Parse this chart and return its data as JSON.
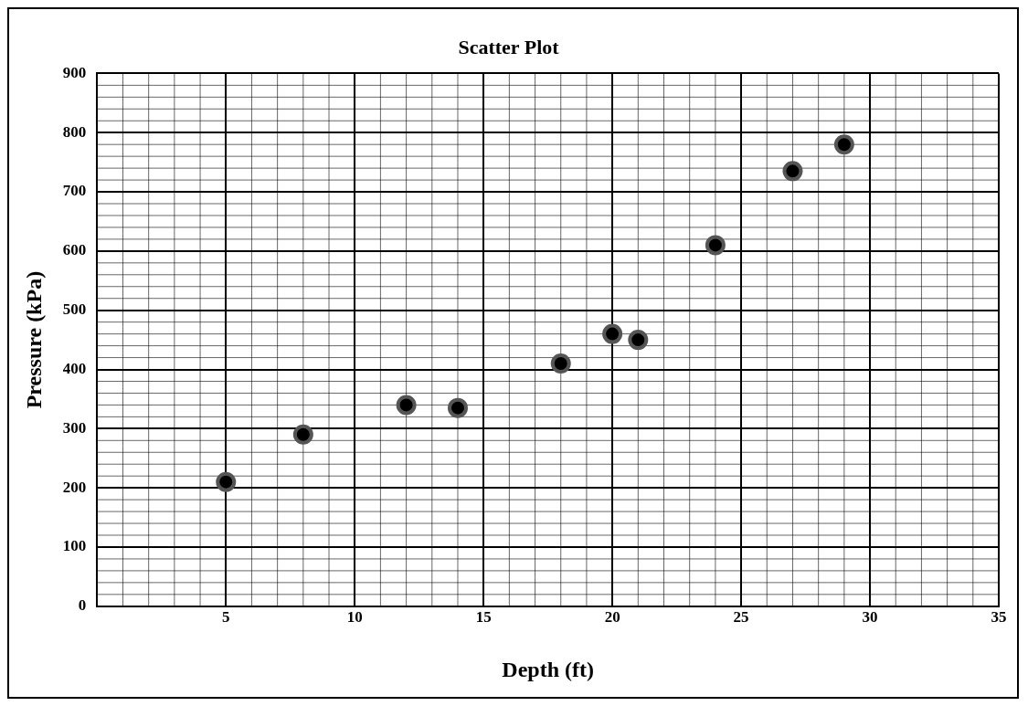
{
  "chart_data": {
    "type": "scatter",
    "title": "Scatter Plot",
    "xlabel": "Depth (ft)",
    "ylabel": "Pressure (kPa)",
    "x": [
      5,
      8,
      12,
      14,
      18,
      20,
      21,
      24,
      27,
      29
    ],
    "values": [
      210,
      290,
      340,
      335,
      410,
      460,
      450,
      610,
      735,
      780
    ],
    "color": "#555555",
    "marker": "circle",
    "xlim": [
      0,
      35
    ],
    "xticks": [
      {
        "value": 0,
        "label": null
      },
      5,
      10,
      15,
      20,
      25,
      30,
      35
    ],
    "ylim": [
      0,
      900
    ],
    "yticks": [
      0,
      100,
      200,
      300,
      400,
      500,
      600,
      700,
      800,
      900
    ],
    "grid": true,
    "legend": false
  }
}
